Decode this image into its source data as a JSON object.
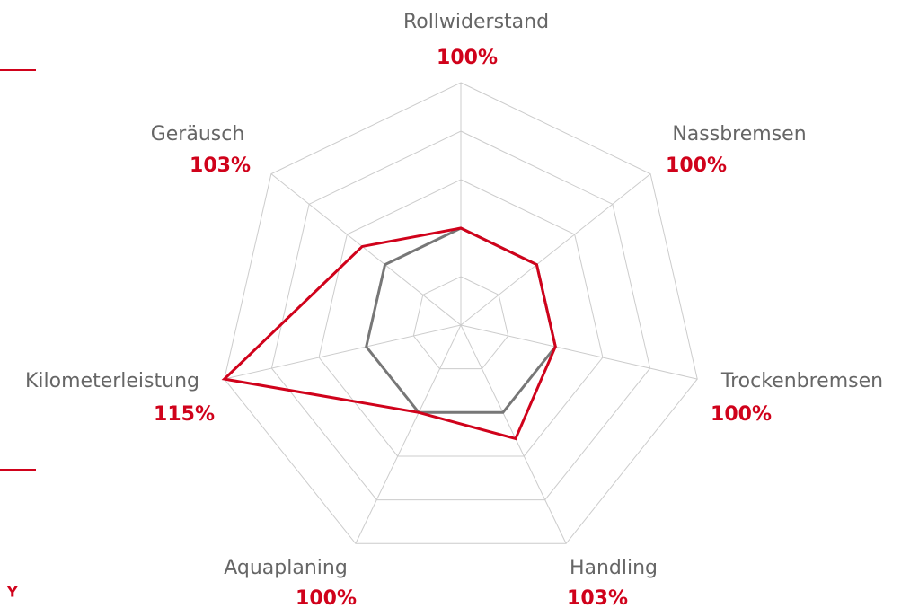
{
  "chart_data": {
    "type": "radar",
    "categories": [
      "Rollwiderstand",
      "Nassbremsen",
      "Trockenbremsen",
      "Handling",
      "Aquaplaning",
      "Kilometerleistung",
      "Geräusch"
    ],
    "series": [
      {
        "color": "#777777",
        "values": [
          100,
          100,
          100,
          100,
          100,
          100,
          100
        ]
      },
      {
        "color": "#d0021b",
        "values": [
          100,
          100,
          100,
          103,
          100,
          115,
          103
        ],
        "value_labels": [
          "100%",
          "100%",
          "100%",
          "103%",
          "100%",
          "115%",
          "103%"
        ]
      }
    ],
    "rlim": [
      90,
      115
    ],
    "rticks": [
      95,
      100,
      105,
      110,
      115
    ],
    "grid": true
  },
  "side_text": "Y"
}
